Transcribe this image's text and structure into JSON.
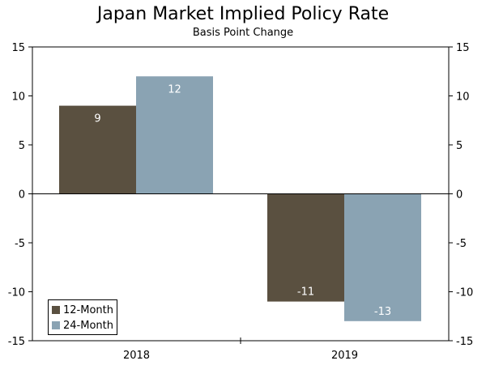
{
  "chart_data": {
    "type": "bar",
    "title": "Japan Market Implied Policy Rate",
    "subtitle": "Basis Point Change",
    "categories": [
      "2018",
      "2019"
    ],
    "series": [
      {
        "name": "12-Month",
        "values": [
          9,
          -11
        ],
        "color": "#5a5040",
        "labels": [
          "9",
          "-11"
        ]
      },
      {
        "name": "24-Month",
        "values": [
          12,
          -13
        ],
        "color": "#8aa3b3",
        "labels": [
          "12",
          "-13"
        ]
      }
    ],
    "ylim": [
      -15,
      15
    ],
    "yticks": [
      "15",
      "10",
      "5",
      "0",
      "-5",
      "-10",
      "-15"
    ],
    "ytick_values": [
      15,
      10,
      5,
      0,
      -5,
      -10,
      -15
    ],
    "xlabel": "",
    "ylabel": "",
    "legend": "bottom-left",
    "grid": false
  }
}
